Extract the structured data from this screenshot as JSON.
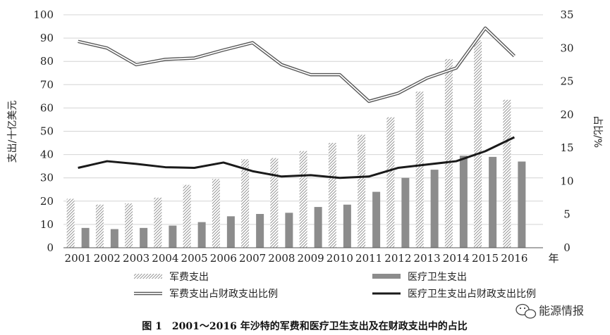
{
  "chart_data": {
    "type": "bar",
    "categories": [
      "2001",
      "2002",
      "2003",
      "2004",
      "2005",
      "2006",
      "2007",
      "2008",
      "2009",
      "2010",
      "2011",
      "2012",
      "2013",
      "2014",
      "2015",
      "2016"
    ],
    "x_unit_label": "年",
    "y_left": {
      "label": "支出/十亿美元",
      "range": [
        0,
        100
      ],
      "ticks": [
        0,
        10,
        20,
        30,
        40,
        50,
        60,
        70,
        80,
        90,
        100
      ]
    },
    "y_right": {
      "label": "占比/%",
      "range": [
        0,
        35
      ],
      "ticks": [
        0,
        5,
        10,
        15,
        20,
        25,
        30,
        35
      ]
    },
    "grid": true,
    "legend_position": "bottom",
    "series": [
      {
        "name": "军费支出",
        "type": "bar",
        "axis": "left",
        "pattern": "hatched",
        "values": [
          21,
          18.5,
          19,
          21.5,
          27,
          29.5,
          38,
          38.5,
          41.5,
          45,
          48.5,
          56,
          67,
          81,
          89,
          63.5
        ]
      },
      {
        "name": "医疗卫生支出",
        "type": "bar",
        "axis": "left",
        "pattern": "solid",
        "values": [
          8.5,
          8,
          8.5,
          9.5,
          11,
          13.5,
          14.5,
          15,
          17.5,
          18.5,
          24,
          30,
          33.5,
          39.5,
          39,
          37
        ]
      },
      {
        "name": "军费支出占财政支出比例",
        "type": "line",
        "axis": "right",
        "style": "double",
        "values": [
          31,
          30,
          27.5,
          28.3,
          28.5,
          29.7,
          30.8,
          27.5,
          26,
          26,
          22,
          23.2,
          25.5,
          27,
          33,
          28.8
        ]
      },
      {
        "name": "医疗卫生支出占财政支出比例",
        "type": "line",
        "axis": "right",
        "style": "solid",
        "values": [
          12,
          13,
          12.6,
          12.1,
          12,
          12.8,
          11.5,
          10.7,
          10.9,
          10.5,
          10.7,
          12,
          12.5,
          13,
          14.5,
          16.6
        ]
      }
    ]
  },
  "caption": "图 1　2001～2016 年沙特的军费和医疗卫生支出及在财政支出中的占比",
  "watermark": "能源情报",
  "colors": {
    "hatch": "#8a8a8a",
    "solid_bar": "#8c8c8c",
    "line_dark": "#1a1a1a",
    "grid": "#d4d4d4"
  }
}
